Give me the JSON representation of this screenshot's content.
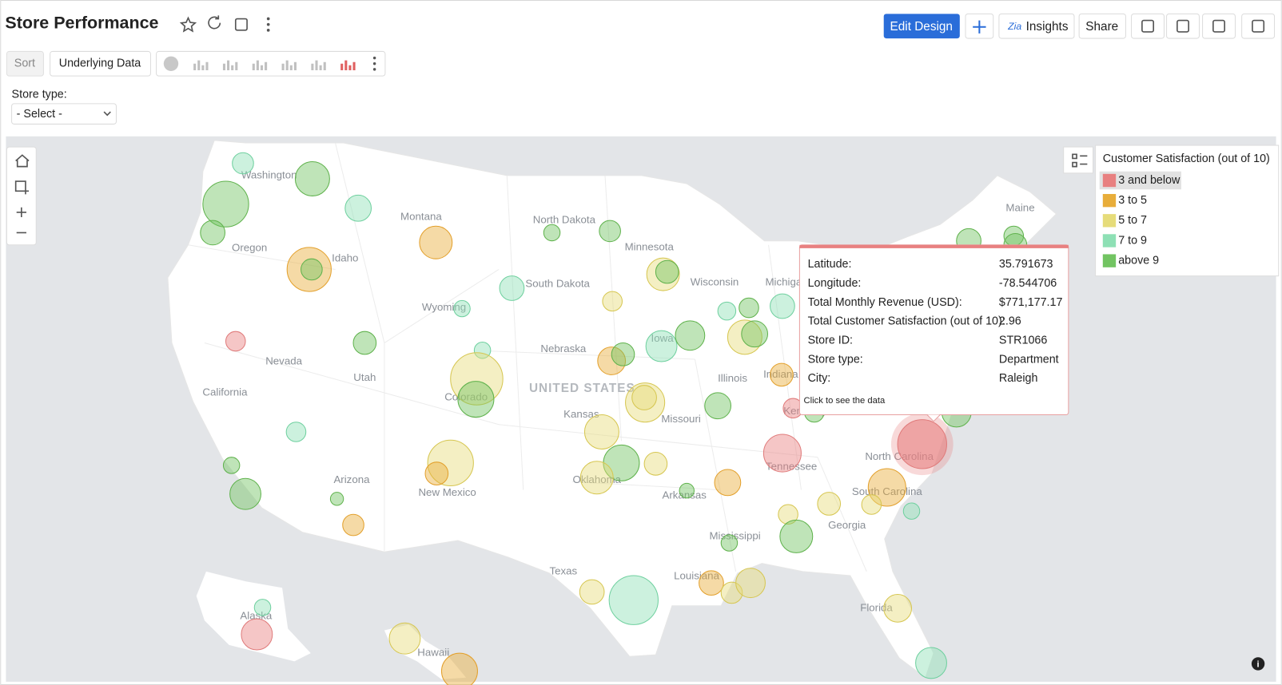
{
  "header": {
    "title": "Store Performance",
    "buttons": [
      "Edit Design",
      "Insights",
      "Share"
    ]
  },
  "toolbar": {
    "sort": "Sort",
    "underlying": "Underlying Data"
  },
  "filter": {
    "label": "Store type:",
    "value": "- Select -"
  },
  "map": {
    "country": "UNITED STATES",
    "labels": [
      "Washington",
      "Oregon",
      "Montana",
      "Idaho",
      "North Dakota",
      "Minnesota",
      "South Dakota",
      "Wyoming",
      "Wisconsin",
      "Michigan",
      "Nevada",
      "Utah",
      "Nebraska",
      "Iowa",
      "Illinois",
      "Indiana",
      "California",
      "Colorado",
      "Kansas",
      "Missouri",
      "Kentucky",
      "Tennessee",
      "North Carolina",
      "Arizona",
      "New Mexico",
      "Oklahoma",
      "Arkansas",
      "South Carolina",
      "Georgia",
      "Mississippi",
      "Texas",
      "Louisiana",
      "Florida",
      "Alaska",
      "Hawaii",
      "Maine"
    ]
  },
  "legend": {
    "title": "Customer Satisfaction (out of 10)",
    "items": [
      {
        "label": "3 and below",
        "color": "#e88080"
      },
      {
        "label": "3 to 5",
        "color": "#e8ad3a"
      },
      {
        "label": "5 to 7",
        "color": "#e6dc7a"
      },
      {
        "label": "7 to 9",
        "color": "#8ee0b5"
      },
      {
        "label": "above 9",
        "color": "#72c462"
      }
    ]
  },
  "tooltip": {
    "rows": [
      {
        "label": "Latitude:",
        "value": 35.791673
      },
      {
        "label": "Longitude:",
        "value": -78.544706
      },
      {
        "label": "Total Monthly Revenue (USD):",
        "value": "$771,177.17"
      },
      {
        "label": "Total Customer Satisfaction (out of 10):",
        "value": 2.96
      },
      {
        "label": "Store ID:",
        "value": "STR1066"
      },
      {
        "label": "Store type:",
        "value": "Department"
      },
      {
        "label": "City:",
        "value": "Raleigh"
      }
    ],
    "footer": "Click to see the data"
  }
}
